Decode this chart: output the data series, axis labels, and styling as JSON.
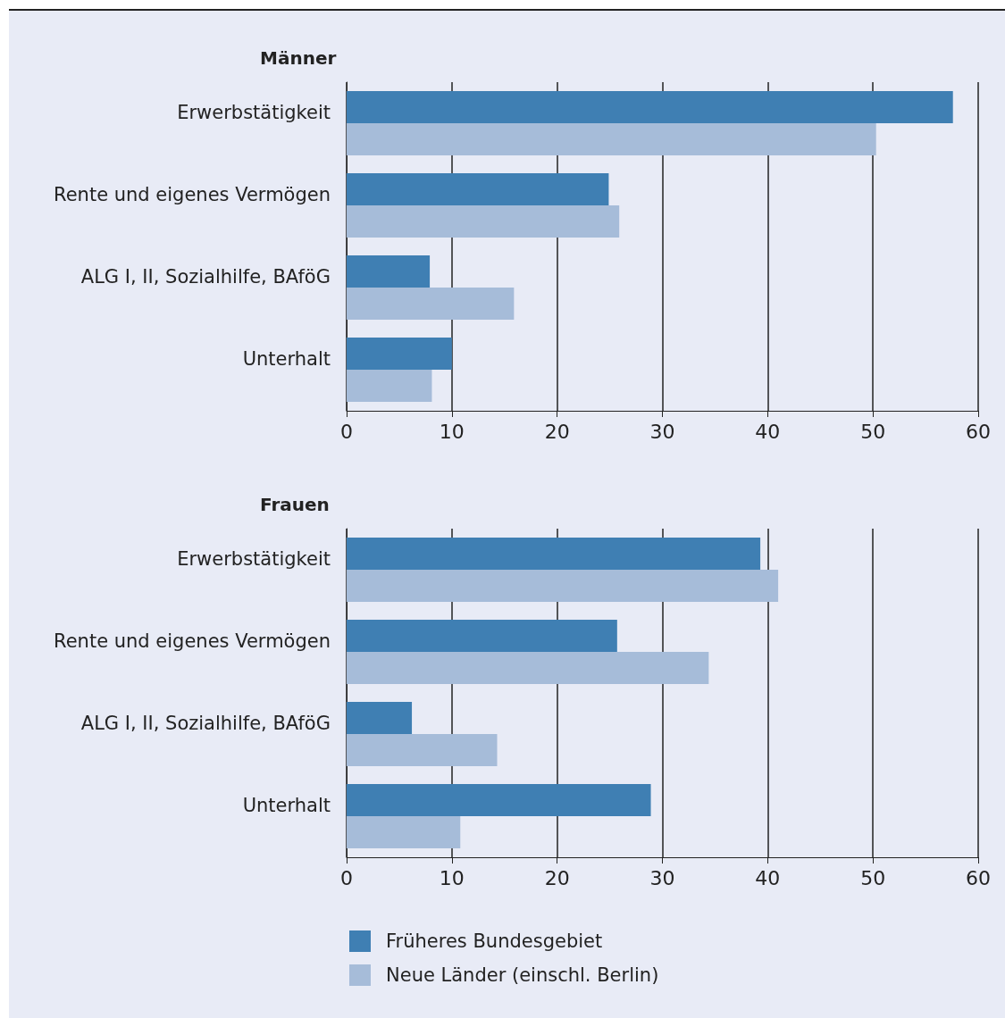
{
  "chart_data": [
    {
      "type": "bar",
      "orientation": "horizontal",
      "title": "Männer",
      "categories": [
        "Erwerbstätigkeit",
        "Rente und eigenes Vermögen",
        "ALG I, II, Sozialhilfe, BAföG",
        "Unterhalt"
      ],
      "series": [
        {
          "color": "#3f7fb3",
          "values": [
            57.6,
            24.9,
            7.9,
            10.0
          ]
        },
        {
          "color": "#a6bcd9",
          "values": [
            50.3,
            25.9,
            15.9,
            8.1
          ]
        }
      ],
      "xlim": [
        0,
        60
      ],
      "xticks": [
        0,
        10,
        20,
        30,
        40,
        50,
        60
      ],
      "grid": "x",
      "legend": false
    },
    {
      "type": "bar",
      "orientation": "horizontal",
      "title": "Frauen",
      "categories": [
        "Erwerbstätigkeit",
        "Rente und eigenes Vermögen",
        "ALG I, II, Sozialhilfe, BAföG",
        "Unterhalt"
      ],
      "series": [
        {
          "name": "Früheres Bundesgebiet",
          "color": "#3f7fb3",
          "values": [
            39.3,
            25.7,
            6.2,
            28.9
          ]
        },
        {
          "name": "Neue Länder (einschl. Berlin)",
          "color": "#a6bcd9",
          "values": [
            41.0,
            34.4,
            14.3,
            10.8
          ]
        }
      ],
      "xlim": [
        0,
        60
      ],
      "xticks": [
        0,
        10,
        20,
        30,
        40,
        50,
        60
      ],
      "grid": "x",
      "legend": "bottom"
    }
  ]
}
